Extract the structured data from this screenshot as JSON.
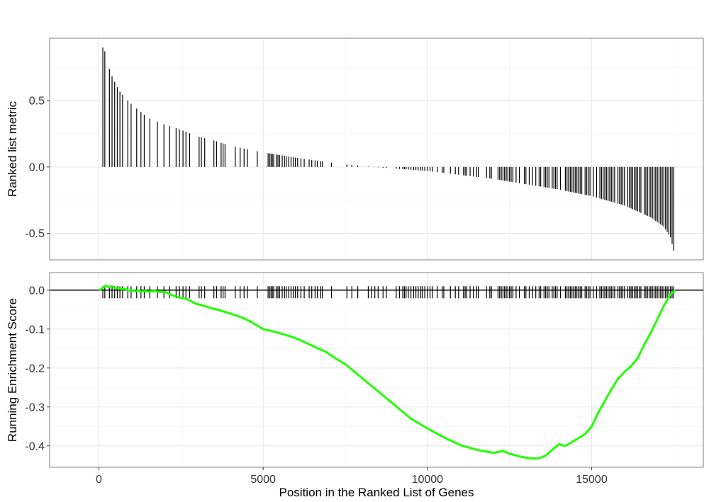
{
  "chart_data": [
    {
      "type": "bar",
      "panel": "ranked-list-metric",
      "title": "",
      "xlabel": "",
      "ylabel": "Ranked list metric",
      "xlim": [
        -1500,
        18400
      ],
      "ylim": [
        -0.7,
        0.97
      ],
      "y_ticks": [
        -0.5,
        0.0,
        0.5
      ],
      "y_tick_labels": [
        "-0.5",
        "0.0",
        "0.5"
      ],
      "grid": true,
      "curve_points": [
        {
          "x": 150,
          "y": 0.9
        },
        {
          "x": 350,
          "y": 0.71
        },
        {
          "x": 600,
          "y": 0.58
        },
        {
          "x": 800,
          "y": 0.52
        },
        {
          "x": 1050,
          "y": 0.46
        },
        {
          "x": 1250,
          "y": 0.42
        },
        {
          "x": 1500,
          "y": 0.37
        },
        {
          "x": 2000,
          "y": 0.32
        },
        {
          "x": 2500,
          "y": 0.28
        },
        {
          "x": 3000,
          "y": 0.23
        },
        {
          "x": 3500,
          "y": 0.2
        },
        {
          "x": 4000,
          "y": 0.16
        },
        {
          "x": 5000,
          "y": 0.11
        },
        {
          "x": 6000,
          "y": 0.07
        },
        {
          "x": 7000,
          "y": 0.035
        },
        {
          "x": 7600,
          "y": 0.018
        },
        {
          "x": 8300,
          "y": 0.0
        },
        {
          "x": 9000,
          "y": -0.012
        },
        {
          "x": 10000,
          "y": -0.03
        },
        {
          "x": 11000,
          "y": -0.06
        },
        {
          "x": 12000,
          "y": -0.09
        },
        {
          "x": 13000,
          "y": -0.13
        },
        {
          "x": 14000,
          "y": -0.17
        },
        {
          "x": 15000,
          "y": -0.22
        },
        {
          "x": 16000,
          "y": -0.29
        },
        {
          "x": 16800,
          "y": -0.38
        },
        {
          "x": 17200,
          "y": -0.45
        },
        {
          "x": 17400,
          "y": -0.53
        },
        {
          "x": 17500,
          "y": -0.63
        }
      ]
    },
    {
      "type": "line",
      "panel": "running-enrichment-score",
      "title": "",
      "xlabel": "Position in the Ranked List of Genes",
      "ylabel": "Running Enrichment Score",
      "xlim": [
        -1500,
        18400
      ],
      "ylim": [
        -0.455,
        0.045
      ],
      "x_ticks": [
        0,
        5000,
        10000,
        15000
      ],
      "x_tick_labels": [
        "0",
        "5000",
        "10000",
        "15000"
      ],
      "y_ticks": [
        -0.4,
        -0.3,
        -0.2,
        -0.1,
        0.0
      ],
      "y_tick_labels": [
        "-0.4",
        "-0.3",
        "-0.2",
        "-0.1",
        "0.0"
      ],
      "grid": true,
      "colors": {
        "enrichment_line": "#22ff00",
        "hit_marks": "#000000",
        "zero_line": "#000000"
      },
      "series": [
        {
          "x": [
            0,
            100,
            200,
            300,
            400,
            500,
            600,
            700,
            800,
            900,
            1000,
            1100,
            1200,
            1300,
            1400,
            1500,
            1600,
            1700,
            1800,
            1900,
            2000,
            2100,
            2200,
            2300,
            2400,
            2500,
            2600,
            2700,
            2800,
            2900,
            3000,
            3200,
            3400,
            3600,
            3800,
            4000,
            4200,
            4400,
            4600,
            4800,
            5000,
            5200,
            5400,
            5600,
            5800,
            6000,
            6300,
            6600,
            6900,
            7200,
            7500,
            8000,
            8500,
            9000,
            9500,
            10000,
            10500,
            11000,
            11500,
            12000,
            12300,
            12500,
            12800,
            13100,
            13400,
            13600,
            13800,
            14000,
            14200,
            14500,
            14800,
            15000,
            15200,
            15400,
            15600,
            15800,
            16000,
            16200,
            16400,
            16600,
            16800,
            17000,
            17200,
            17400,
            17550
          ],
          "y": [
            0.0,
            0.004,
            0.012,
            0.008,
            0.01,
            0.004,
            0.006,
            0.002,
            0.003,
            -0.001,
            0.0,
            -0.003,
            -0.001,
            -0.004,
            -0.002,
            -0.004,
            -0.003,
            -0.002,
            -0.004,
            -0.005,
            -0.004,
            -0.008,
            -0.012,
            -0.015,
            -0.018,
            -0.02,
            -0.021,
            -0.024,
            -0.028,
            -0.033,
            -0.036,
            -0.04,
            -0.046,
            -0.05,
            -0.055,
            -0.06,
            -0.066,
            -0.072,
            -0.08,
            -0.09,
            -0.1,
            -0.104,
            -0.108,
            -0.113,
            -0.118,
            -0.124,
            -0.135,
            -0.147,
            -0.158,
            -0.175,
            -0.19,
            -0.225,
            -0.26,
            -0.295,
            -0.33,
            -0.355,
            -0.378,
            -0.398,
            -0.41,
            -0.418,
            -0.413,
            -0.42,
            -0.427,
            -0.432,
            -0.432,
            -0.425,
            -0.41,
            -0.396,
            -0.4,
            -0.385,
            -0.37,
            -0.35,
            -0.315,
            -0.285,
            -0.255,
            -0.228,
            -0.21,
            -0.195,
            -0.175,
            -0.14,
            -0.11,
            -0.075,
            -0.04,
            -0.01,
            0.0
          ],
          "color": "#22ff00"
        }
      ],
      "hits": [
        120,
        180,
        320,
        400,
        480,
        560,
        640,
        720,
        880,
        980,
        1150,
        1280,
        1380,
        1550,
        1780,
        1980,
        2150,
        2350,
        2450,
        2560,
        2650,
        2760,
        3050,
        3120,
        3220,
        3500,
        3580,
        3720,
        3780,
        3840,
        4150,
        4300,
        4420,
        4520,
        4820,
        5150,
        5200,
        5240,
        5280,
        5320,
        5400,
        5450,
        5500,
        5580,
        5650,
        5700,
        5780,
        5850,
        5920,
        5980,
        6050,
        6150,
        6250,
        6400,
        6480,
        6580,
        6650,
        6750,
        6800,
        7080,
        7550,
        7700,
        7880,
        8200,
        8300,
        8400,
        8500,
        8650,
        8750,
        9050,
        9150,
        9250,
        9300,
        9350,
        9420,
        9500,
        9580,
        9650,
        9720,
        9800,
        9850,
        9920,
        10000,
        10080,
        10150,
        10300,
        10450,
        10500,
        10700,
        10850,
        10950,
        11100,
        11150,
        11200,
        11300,
        11400,
        11500,
        11550,
        11800,
        11900,
        11950,
        12150,
        12200,
        12250,
        12300,
        12350,
        12400,
        12450,
        12500,
        12550,
        12600,
        12700,
        12800,
        12950,
        13000,
        13100,
        13200,
        13300,
        13400,
        13450,
        13550,
        13600,
        13650,
        13700,
        13800,
        13850,
        13900,
        13950,
        14050,
        14200,
        14250,
        14300,
        14350,
        14400,
        14450,
        14500,
        14550,
        14600,
        14650,
        14700,
        14800,
        14850,
        14900,
        14950,
        15050,
        15150,
        15250,
        15300,
        15350,
        15400,
        15450,
        15500,
        15550,
        15600,
        15650,
        15700,
        15800,
        15850,
        15900,
        15950,
        16000,
        16100,
        16150,
        16200,
        16250,
        16300,
        16350,
        16400,
        16450,
        16500,
        16600,
        16650,
        16700,
        16750,
        16800,
        16850,
        16900,
        16950,
        17000,
        17050,
        17100,
        17150,
        17200,
        17250,
        17300,
        17350,
        17400,
        17450,
        17500
      ]
    }
  ]
}
